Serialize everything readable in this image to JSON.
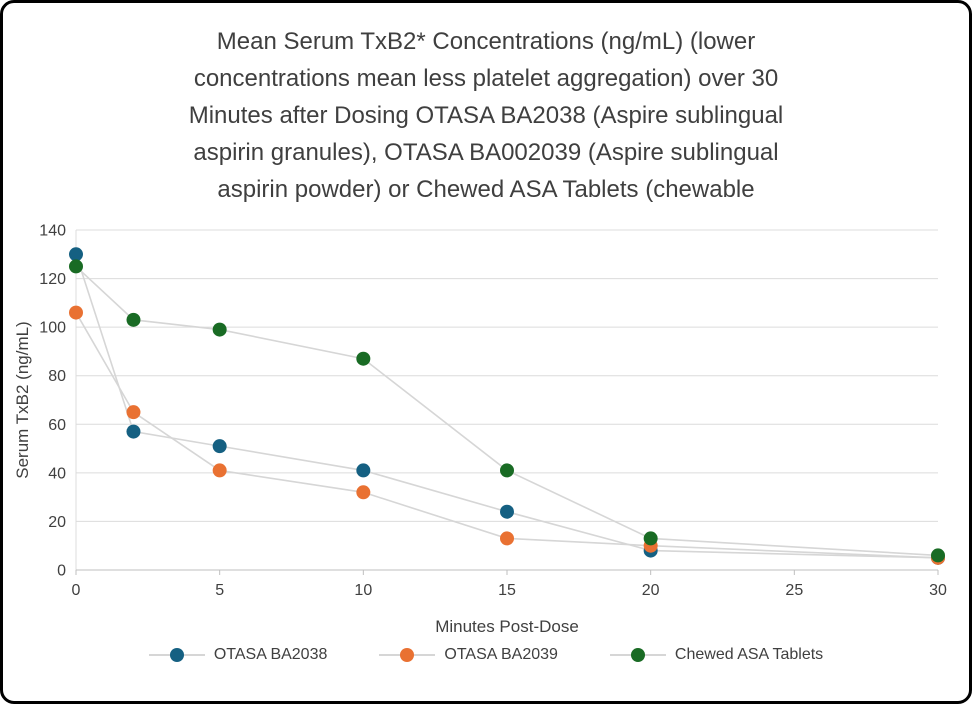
{
  "title": {
    "lines": [
      "Mean Serum TxB2* Concentrations (ng/mL) (lower",
      "concentrations mean less platelet aggregation) over 30",
      "Minutes after Dosing OTASA BA2038 (Aspire sublingual",
      "aspirin granules), OTASA BA002039 (Aspire sublingual",
      "aspirin powder) or Chewed ASA Tablets (chewable"
    ]
  },
  "chart_data": {
    "type": "line",
    "x": [
      0,
      2,
      5,
      10,
      15,
      20,
      30
    ],
    "series": [
      {
        "name": "OTASA BA2038",
        "color": "#156082",
        "values": [
          130,
          57,
          51,
          41,
          24,
          8,
          5
        ]
      },
      {
        "name": "OTASA BA2039",
        "color": "#E97132",
        "values": [
          106,
          65,
          41,
          32,
          13,
          10,
          5
        ]
      },
      {
        "name": "Chewed ASA Tablets",
        "color": "#196B24",
        "values": [
          125,
          103,
          99,
          87,
          41,
          13,
          6
        ]
      }
    ],
    "xlabel": "Minutes Post-Dose",
    "ylabel": "Serum TxB2 (ng/mL)",
    "xlim": [
      0,
      30
    ],
    "ylim": [
      0,
      140
    ],
    "x_ticks": [
      0,
      5,
      10,
      15,
      20,
      25,
      30
    ],
    "y_ticks": [
      0,
      20,
      40,
      60,
      80,
      100,
      120,
      140
    ],
    "line_color": "#d6d6d6",
    "grid_color": "#dcdcdc",
    "axis_color": "#bfbfbf",
    "tick_label_color": "#404040",
    "grid": true,
    "legend_position": "bottom"
  }
}
